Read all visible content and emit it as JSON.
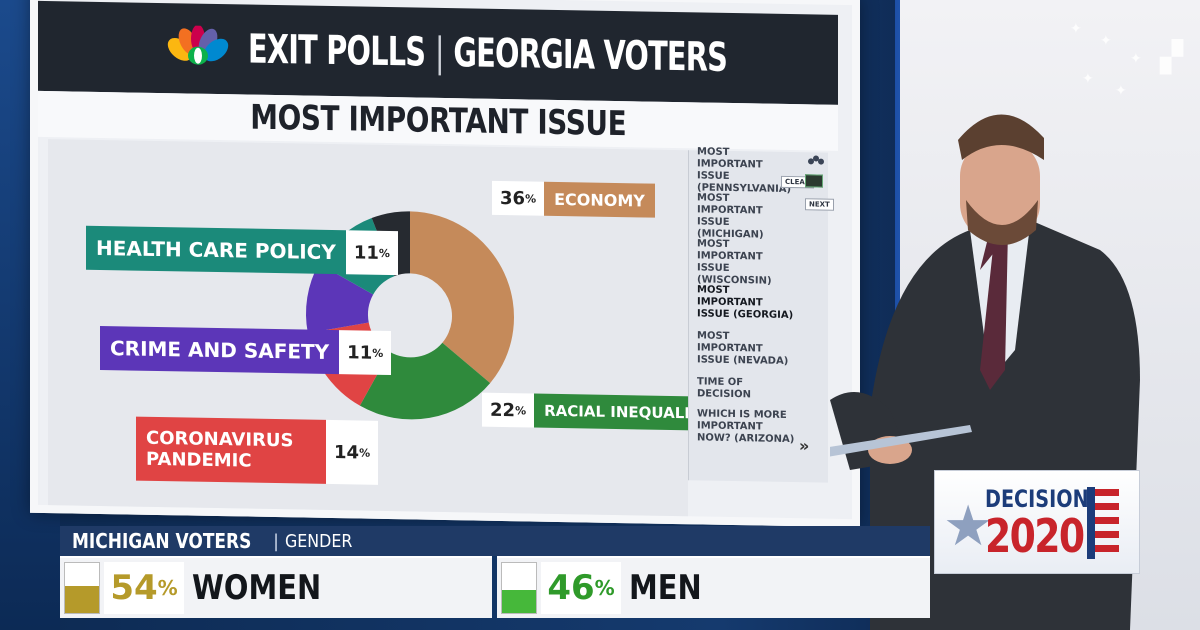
{
  "header": {
    "brand": "EXIT POLLS",
    "region": "GEORGIA VOTERS",
    "subtitle": "MOST IMPORTANT ISSUE"
  },
  "colors": {
    "economy": "#c58a5a",
    "racial_inequality": "#2f8a3c",
    "coronavirus": "#e04444",
    "crime": "#5c36b8",
    "health": "#1b8a7a",
    "other": "#262a30",
    "women_bar": "#b59a2a",
    "men_bar": "#46b83a"
  },
  "chart_data": {
    "type": "pie",
    "title": "MOST IMPORTANT ISSUE",
    "donut": true,
    "slices": [
      {
        "name": "ECONOMY",
        "value": 36
      },
      {
        "name": "RACIAL INEQUALITY",
        "value": 22
      },
      {
        "name": "CORONAVIRUS PANDEMIC",
        "value": 14
      },
      {
        "name": "CRIME AND SAFETY",
        "value": 11
      },
      {
        "name": "HEALTH CARE POLICY",
        "value": 11
      }
    ]
  },
  "labels": {
    "economy": {
      "name": "ECONOMY",
      "pct": "36",
      "sign": "%"
    },
    "racial": {
      "name": "RACIAL INEQUALITY",
      "pct": "22",
      "sign": "%"
    },
    "corona_line1": "CORONAVIRUS",
    "corona_line2": "PANDEMIC",
    "corona_pct": "14",
    "crime": {
      "name": "CRIME AND SAFETY",
      "pct": "11",
      "sign": "%"
    },
    "health": {
      "name": "HEALTH CARE POLICY",
      "pct": "11",
      "sign": "%"
    },
    "pct_sign": "%"
  },
  "sidebar": {
    "items": [
      "MOST IMPORTANT ISSUE (PENNSYLVANIA)",
      "MOST IMPORTANT ISSUE (MICHIGAN)",
      "MOST IMPORTANT ISSUE (WISCONSIN)",
      "MOST IMPORTANT ISSUE (GEORGIA)",
      "MOST IMPORTANT ISSUE (NEVADA)",
      "TIME OF DECISION",
      "WHICH IS MORE IMPORTANT NOW? (ARIZONA)"
    ],
    "clear_label": "CLEAR",
    "next_label": "NEXT",
    "more_arrow": "»"
  },
  "lower_third": {
    "title": "MICHIGAN VOTERS",
    "separator": "|",
    "subtitle": "GENDER",
    "women": {
      "pct": "54",
      "sign": "%",
      "label": "WOMEN",
      "fill": 0.54
    },
    "men": {
      "pct": "46",
      "sign": "%",
      "label": "MEN",
      "fill": 0.46
    }
  },
  "decision": {
    "word": "DECISION",
    "year": "2020"
  }
}
